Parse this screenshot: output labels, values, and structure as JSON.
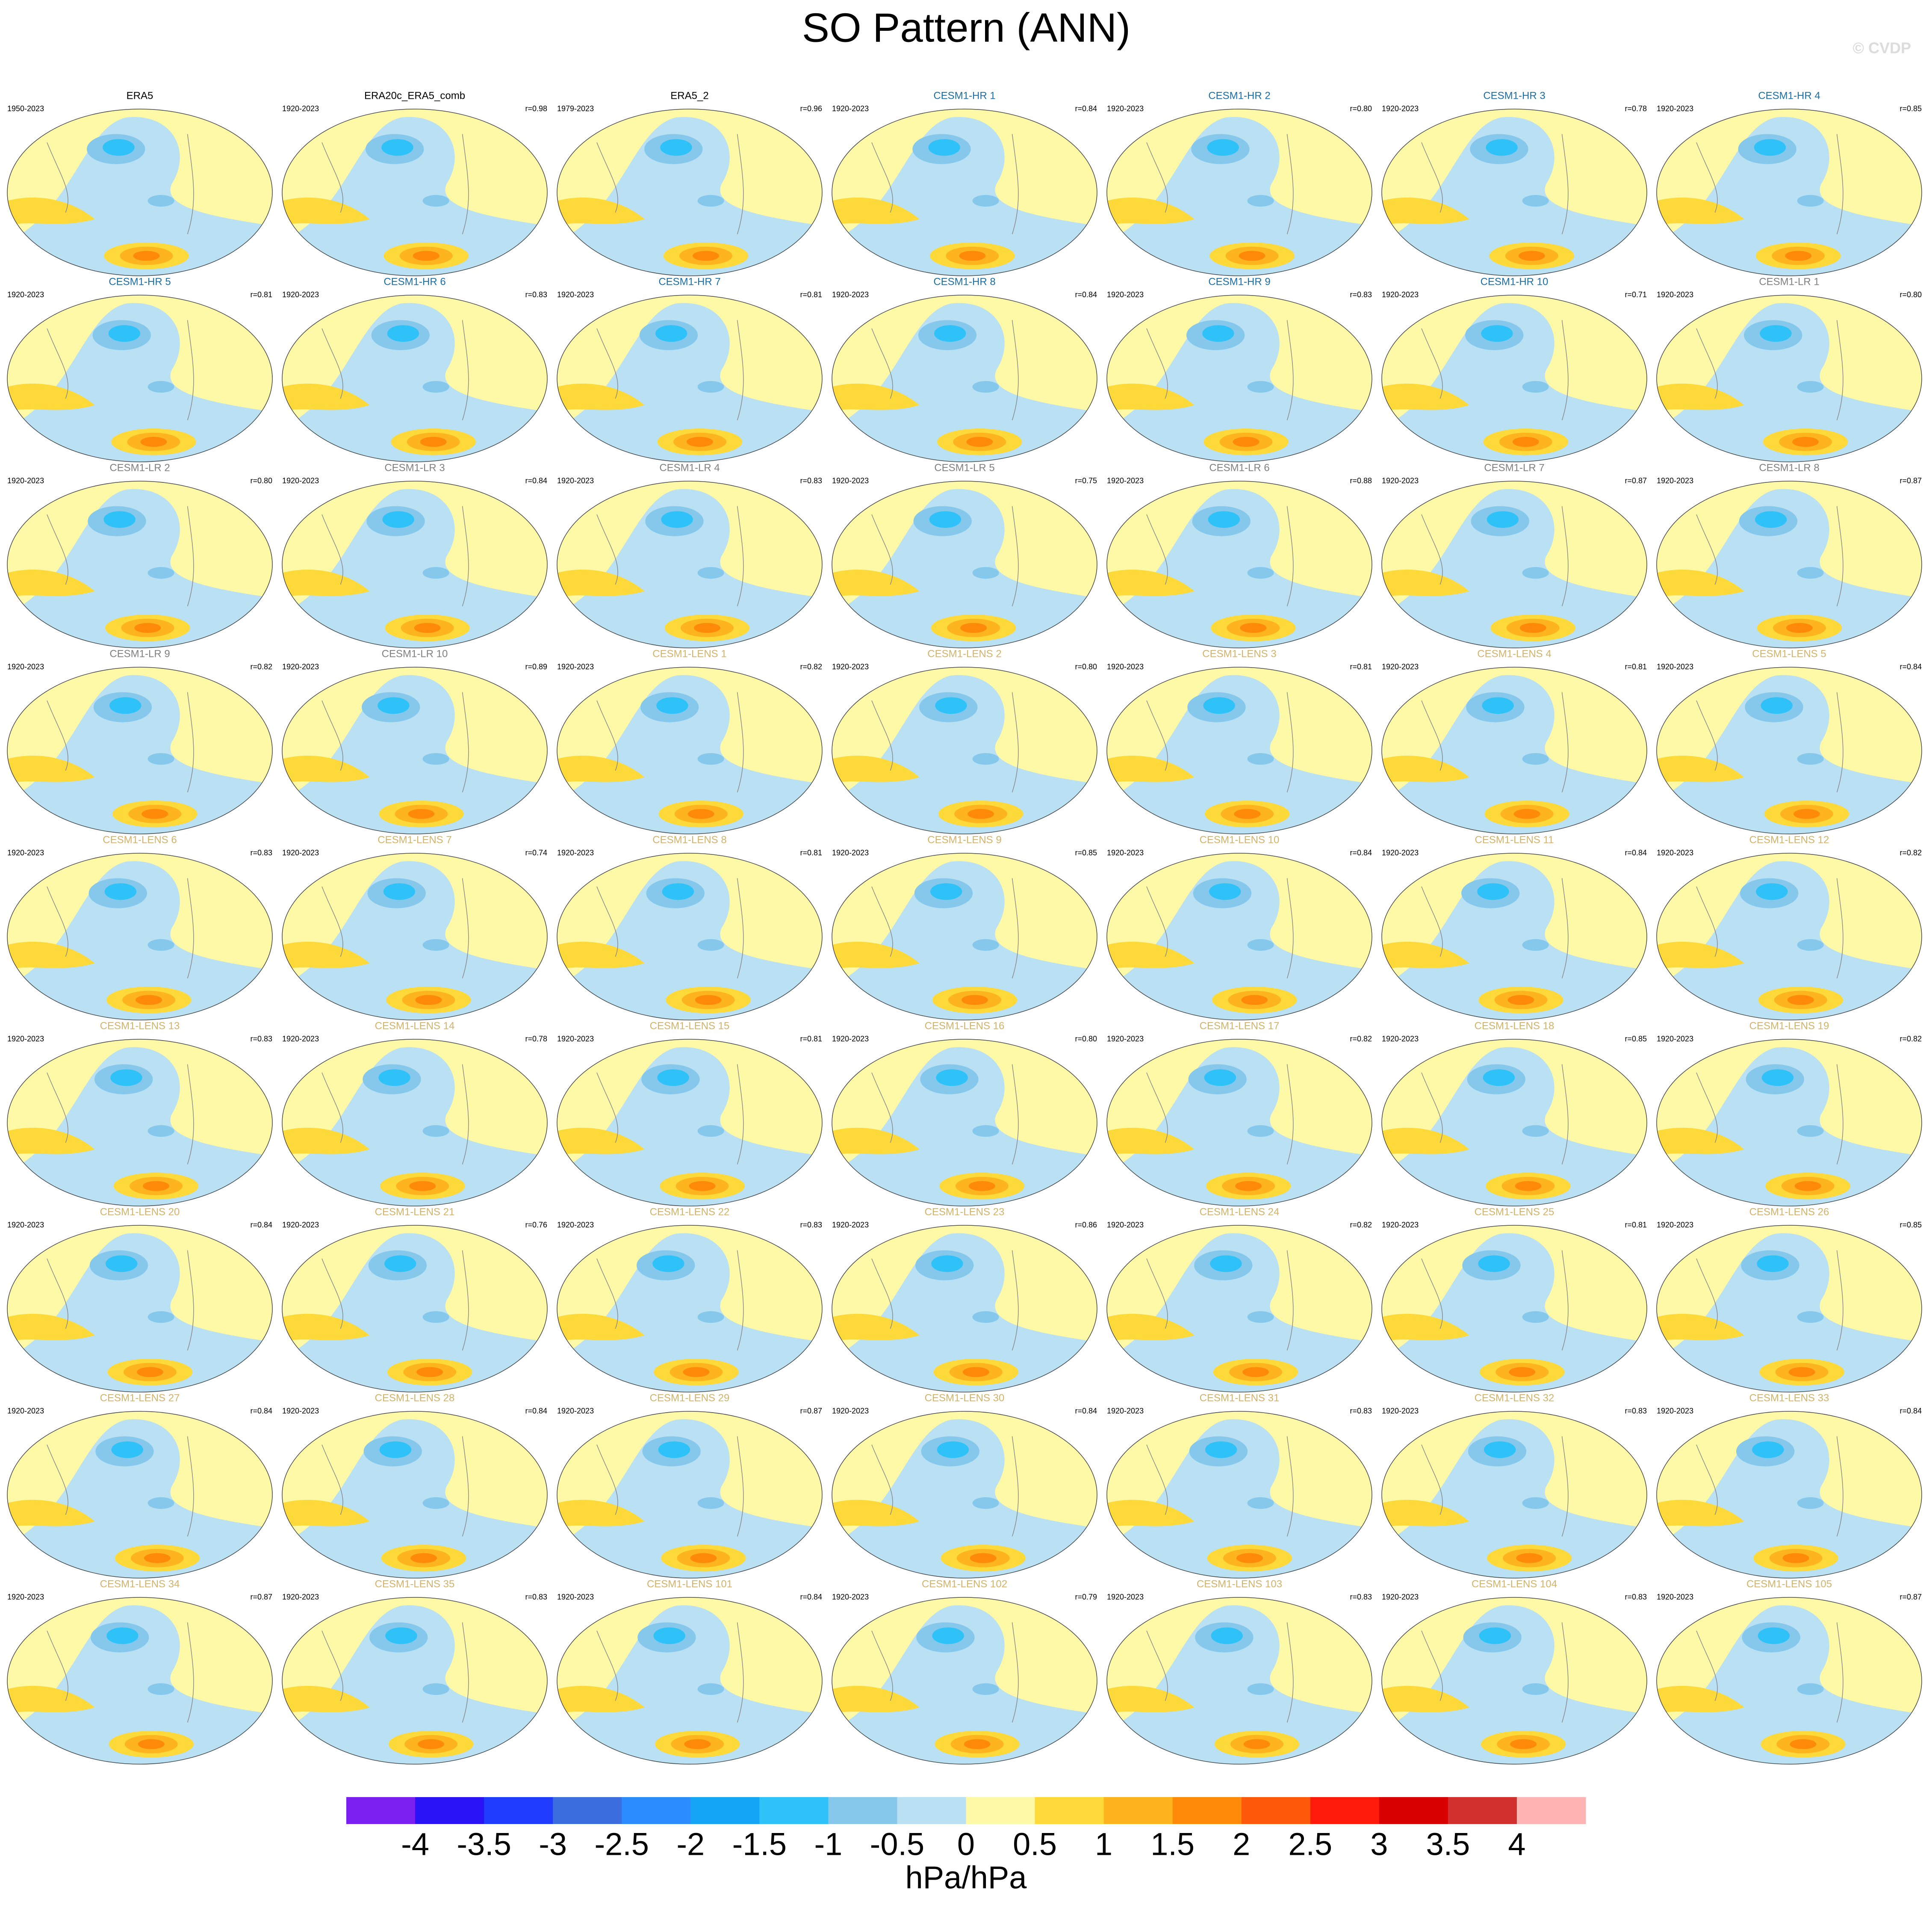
{
  "title": "SO Pattern (ANN)",
  "watermark": "© CVDP",
  "panels": [
    {
      "name": "ERA5",
      "years": "1950-2023",
      "color": "#000000"
    },
    {
      "name": "ERA20c_ERA5_comb",
      "years": "1920-2023",
      "r": "r=0.98",
      "color": "#000000"
    },
    {
      "name": "ERA5_2",
      "years": "1979-2023",
      "r": "r=0.96",
      "color": "#000000"
    },
    {
      "name": "CESM1-HR 1",
      "years": "1920-2023",
      "r": "r=0.84",
      "color": "#1c6ea4"
    },
    {
      "name": "CESM1-HR 2",
      "years": "1920-2023",
      "r": "r=0.80",
      "color": "#1c6ea4"
    },
    {
      "name": "CESM1-HR 3",
      "years": "1920-2023",
      "r": "r=0.78",
      "color": "#1c6ea4"
    },
    {
      "name": "CESM1-HR 4",
      "years": "1920-2023",
      "r": "r=0.85",
      "color": "#1c6ea4"
    },
    {
      "name": "CESM1-HR 5",
      "years": "1920-2023",
      "r": "r=0.81",
      "color": "#1c6ea4"
    },
    {
      "name": "CESM1-HR 6",
      "years": "1920-2023",
      "r": "r=0.83",
      "color": "#1c6ea4"
    },
    {
      "name": "CESM1-HR 7",
      "years": "1920-2023",
      "r": "r=0.81",
      "color": "#1c6ea4"
    },
    {
      "name": "CESM1-HR 8",
      "years": "1920-2023",
      "r": "r=0.84",
      "color": "#1c6ea4"
    },
    {
      "name": "CESM1-HR 9",
      "years": "1920-2023",
      "r": "r=0.83",
      "color": "#1c6ea4"
    },
    {
      "name": "CESM1-HR 10",
      "years": "1920-2023",
      "r": "r=0.71",
      "color": "#1c6ea4"
    },
    {
      "name": "CESM1-LR 1",
      "years": "1920-2023",
      "r": "r=0.80",
      "color": "#808080"
    },
    {
      "name": "CESM1-LR 2",
      "years": "1920-2023",
      "r": "r=0.80",
      "color": "#808080"
    },
    {
      "name": "CESM1-LR 3",
      "years": "1920-2023",
      "r": "r=0.84",
      "color": "#808080"
    },
    {
      "name": "CESM1-LR 4",
      "years": "1920-2023",
      "r": "r=0.83",
      "color": "#808080"
    },
    {
      "name": "CESM1-LR 5",
      "years": "1920-2023",
      "r": "r=0.75",
      "color": "#808080"
    },
    {
      "name": "CESM1-LR 6",
      "years": "1920-2023",
      "r": "r=0.88",
      "color": "#808080"
    },
    {
      "name": "CESM1-LR 7",
      "years": "1920-2023",
      "r": "r=0.87",
      "color": "#808080"
    },
    {
      "name": "CESM1-LR 8",
      "years": "1920-2023",
      "r": "r=0.87",
      "color": "#808080"
    },
    {
      "name": "CESM1-LR 9",
      "years": "1920-2023",
      "r": "r=0.82",
      "color": "#808080"
    },
    {
      "name": "CESM1-LR 10",
      "years": "1920-2023",
      "r": "r=0.89",
      "color": "#808080"
    },
    {
      "name": "CESM1-LENS 1",
      "years": "1920-2023",
      "r": "r=0.82",
      "color": "#d2b36a"
    },
    {
      "name": "CESM1-LENS 2",
      "years": "1920-2023",
      "r": "r=0.80",
      "color": "#d2b36a"
    },
    {
      "name": "CESM1-LENS 3",
      "years": "1920-2023",
      "r": "r=0.81",
      "color": "#d2b36a"
    },
    {
      "name": "CESM1-LENS 4",
      "years": "1920-2023",
      "r": "r=0.81",
      "color": "#d2b36a"
    },
    {
      "name": "CESM1-LENS 5",
      "years": "1920-2023",
      "r": "r=0.84",
      "color": "#d2b36a"
    },
    {
      "name": "CESM1-LENS 6",
      "years": "1920-2023",
      "r": "r=0.83",
      "color": "#d2b36a"
    },
    {
      "name": "CESM1-LENS 7",
      "years": "1920-2023",
      "r": "r=0.74",
      "color": "#d2b36a"
    },
    {
      "name": "CESM1-LENS 8",
      "years": "1920-2023",
      "r": "r=0.81",
      "color": "#d2b36a"
    },
    {
      "name": "CESM1-LENS 9",
      "years": "1920-2023",
      "r": "r=0.85",
      "color": "#d2b36a"
    },
    {
      "name": "CESM1-LENS 10",
      "years": "1920-2023",
      "r": "r=0.84",
      "color": "#d2b36a"
    },
    {
      "name": "CESM1-LENS 11",
      "years": "1920-2023",
      "r": "r=0.84",
      "color": "#d2b36a"
    },
    {
      "name": "CESM1-LENS 12",
      "years": "1920-2023",
      "r": "r=0.82",
      "color": "#d2b36a"
    },
    {
      "name": "CESM1-LENS 13",
      "years": "1920-2023",
      "r": "r=0.83",
      "color": "#d2b36a"
    },
    {
      "name": "CESM1-LENS 14",
      "years": "1920-2023",
      "r": "r=0.78",
      "color": "#d2b36a"
    },
    {
      "name": "CESM1-LENS 15",
      "years": "1920-2023",
      "r": "r=0.81",
      "color": "#d2b36a"
    },
    {
      "name": "CESM1-LENS 16",
      "years": "1920-2023",
      "r": "r=0.80",
      "color": "#d2b36a"
    },
    {
      "name": "CESM1-LENS 17",
      "years": "1920-2023",
      "r": "r=0.82",
      "color": "#d2b36a"
    },
    {
      "name": "CESM1-LENS 18",
      "years": "1920-2023",
      "r": "r=0.85",
      "color": "#d2b36a"
    },
    {
      "name": "CESM1-LENS 19",
      "years": "1920-2023",
      "r": "r=0.82",
      "color": "#d2b36a"
    },
    {
      "name": "CESM1-LENS 20",
      "years": "1920-2023",
      "r": "r=0.84",
      "color": "#d2b36a"
    },
    {
      "name": "CESM1-LENS 21",
      "years": "1920-2023",
      "r": "r=0.76",
      "color": "#d2b36a"
    },
    {
      "name": "CESM1-LENS 22",
      "years": "1920-2023",
      "r": "r=0.83",
      "color": "#d2b36a"
    },
    {
      "name": "CESM1-LENS 23",
      "years": "1920-2023",
      "r": "r=0.86",
      "color": "#d2b36a"
    },
    {
      "name": "CESM1-LENS 24",
      "years": "1920-2023",
      "r": "r=0.82",
      "color": "#d2b36a"
    },
    {
      "name": "CESM1-LENS 25",
      "years": "1920-2023",
      "r": "r=0.81",
      "color": "#d2b36a"
    },
    {
      "name": "CESM1-LENS 26",
      "years": "1920-2023",
      "r": "r=0.85",
      "color": "#d2b36a"
    },
    {
      "name": "CESM1-LENS 27",
      "years": "1920-2023",
      "r": "r=0.84",
      "color": "#d2b36a"
    },
    {
      "name": "CESM1-LENS 28",
      "years": "1920-2023",
      "r": "r=0.84",
      "color": "#d2b36a"
    },
    {
      "name": "CESM1-LENS 29",
      "years": "1920-2023",
      "r": "r=0.87",
      "color": "#d2b36a"
    },
    {
      "name": "CESM1-LENS 30",
      "years": "1920-2023",
      "r": "r=0.84",
      "color": "#d2b36a"
    },
    {
      "name": "CESM1-LENS 31",
      "years": "1920-2023",
      "r": "r=0.83",
      "color": "#d2b36a"
    },
    {
      "name": "CESM1-LENS 32",
      "years": "1920-2023",
      "r": "r=0.83",
      "color": "#d2b36a"
    },
    {
      "name": "CESM1-LENS 33",
      "years": "1920-2023",
      "r": "r=0.84",
      "color": "#d2b36a"
    },
    {
      "name": "CESM1-LENS 34",
      "years": "1920-2023",
      "r": "r=0.87",
      "color": "#d2b36a"
    },
    {
      "name": "CESM1-LENS 35",
      "years": "1920-2023",
      "r": "r=0.83",
      "color": "#d2b36a"
    },
    {
      "name": "CESM1-LENS 101",
      "years": "1920-2023",
      "r": "r=0.84",
      "color": "#d2b36a"
    },
    {
      "name": "CESM1-LENS 102",
      "years": "1920-2023",
      "r": "r=0.79",
      "color": "#d2b36a"
    },
    {
      "name": "CESM1-LENS 103",
      "years": "1920-2023",
      "r": "r=0.83",
      "color": "#d2b36a"
    },
    {
      "name": "CESM1-LENS 104",
      "years": "1920-2023",
      "r": "r=0.83",
      "color": "#d2b36a"
    },
    {
      "name": "CESM1-LENS 105",
      "years": "1920-2023",
      "r": "r=0.87",
      "color": "#d2b36a"
    }
  ],
  "colorbar": {
    "colors": [
      "#7a1fef",
      "#2a14f5",
      "#1f3cff",
      "#3c6ee0",
      "#2b8cff",
      "#14a6f4",
      "#2ec2f8",
      "#85c8ec",
      "#b9e0f3",
      "#fef9a6",
      "#fed93a",
      "#feb41e",
      "#ff8a0a",
      "#ff5a0c",
      "#ff1a0a",
      "#d80000",
      "#d1302f",
      "#ffb4b4"
    ],
    "ticks": [
      -4,
      -3.5,
      -3,
      -2.5,
      -2,
      -1.5,
      -1,
      -0.5,
      0,
      0.5,
      1,
      1.5,
      2,
      2.5,
      3,
      3.5,
      4
    ],
    "label": "hPa/hPa"
  }
}
